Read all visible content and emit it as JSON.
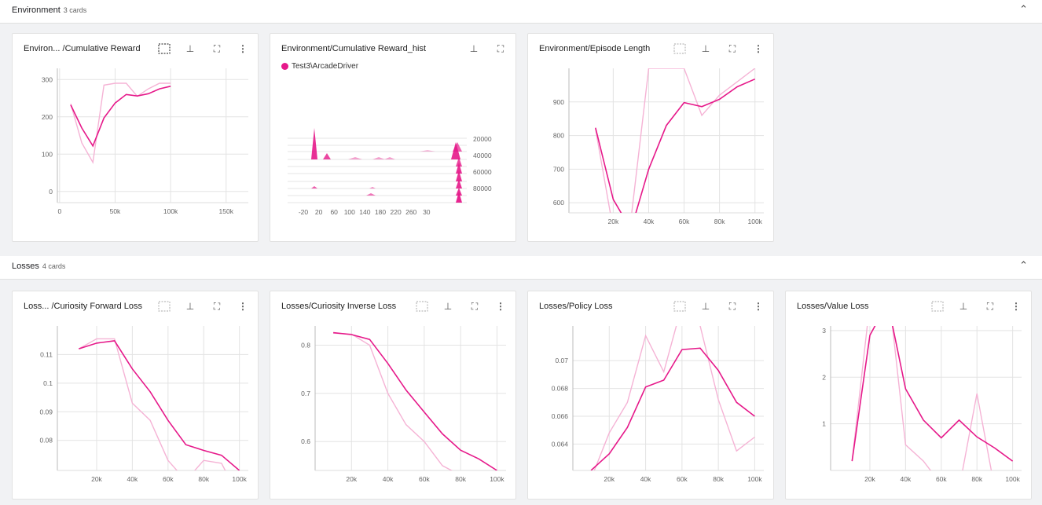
{
  "sections": [
    {
      "title": "Environment",
      "count": "3 cards"
    },
    {
      "title": "Losses",
      "count": "4 cards"
    }
  ],
  "colors": {
    "accent": "#e6198a",
    "accent_light": "#f5b3d5"
  },
  "cards": {
    "c0": {
      "title": "Environ... /Cumulative Reward"
    },
    "c1": {
      "title": "Environment/Cumulative Reward_hist",
      "legend": "Test3\\ArcadeDriver"
    },
    "c2": {
      "title": "Environment/Episode Length"
    },
    "c3": {
      "title": "Loss... /Curiosity Forward Loss"
    },
    "c4": {
      "title": "Losses/Curiosity Inverse Loss"
    },
    "c5": {
      "title": "Losses/Policy Loss"
    },
    "c6": {
      "title": "Losses/Value Loss"
    }
  },
  "chart_data": [
    {
      "id": "c0",
      "type": "line",
      "xlim": [
        -2000,
        170000
      ],
      "ylim": [
        -30,
        330
      ],
      "xticks": [
        0,
        50000,
        100000,
        150000
      ],
      "xtick_labels": [
        "0",
        "50k",
        "100k",
        "150k"
      ],
      "yticks": [
        0,
        100,
        200,
        300
      ],
      "ytick_labels": [
        "0",
        "100",
        "200",
        "300"
      ],
      "series": [
        {
          "kind": "raw",
          "x": [
            10000,
            20000,
            30000,
            40000,
            50000,
            60000,
            70000,
            80000,
            90000,
            100000
          ],
          "y": [
            235,
            130,
            78,
            285,
            290,
            290,
            255,
            275,
            290,
            290
          ]
        },
        {
          "kind": "smoothed",
          "x": [
            10000,
            20000,
            30000,
            40000,
            50000,
            60000,
            70000,
            80000,
            90000,
            100000
          ],
          "y": [
            232,
            170,
            122,
            197,
            237,
            260,
            256,
            262,
            275,
            282
          ]
        }
      ]
    },
    {
      "id": "c1",
      "type": "histogram",
      "xtick_labels": [
        "-20",
        "20",
        "60",
        "100",
        "140",
        "180",
        "220",
        "260",
        "30"
      ],
      "ytick_labels": [
        "20000",
        "40000",
        "60000",
        "80000"
      ]
    },
    {
      "id": "c2",
      "type": "line",
      "xlim": [
        -5000,
        105000
      ],
      "ylim": [
        570,
        1000
      ],
      "xticks": [
        20000,
        40000,
        60000,
        80000,
        100000
      ],
      "xtick_labels": [
        "20k",
        "40k",
        "60k",
        "80k",
        "100k"
      ],
      "yticks": [
        600,
        700,
        800,
        900
      ],
      "ytick_labels": [
        "600",
        "700",
        "800",
        "900"
      ],
      "series": [
        {
          "kind": "raw",
          "x": [
            10000,
            20000,
            30000,
            40000,
            50000,
            60000,
            70000,
            80000,
            90000,
            100000
          ],
          "y": [
            820,
            520,
            550,
            1000,
            1000,
            1000,
            860,
            920,
            960,
            1000
          ]
        },
        {
          "kind": "smoothed",
          "x": [
            10000,
            20000,
            30000,
            40000,
            50000,
            60000,
            70000,
            80000,
            90000,
            100000
          ],
          "y": [
            823,
            610,
            520,
            700,
            830,
            898,
            886,
            908,
            945,
            968
          ]
        }
      ]
    },
    {
      "id": "c3",
      "type": "line",
      "xlim": [
        -2000,
        105000
      ],
      "ylim": [
        0.0695,
        0.12
      ],
      "xticks": [
        20000,
        40000,
        60000,
        80000,
        100000
      ],
      "xtick_labels": [
        "20k",
        "40k",
        "60k",
        "80k",
        "100k"
      ],
      "yticks": [
        0.08,
        0.09,
        0.1,
        0.11
      ],
      "ytick_labels": [
        "0.08",
        "0.09",
        "0.1",
        "0.11"
      ],
      "series": [
        {
          "kind": "raw",
          "x": [
            10000,
            20000,
            30000,
            40000,
            50000,
            60000,
            70000,
            80000,
            90000,
            100000
          ],
          "y": [
            0.112,
            0.1155,
            0.1155,
            0.093,
            0.087,
            0.073,
            0.066,
            0.073,
            0.072,
            0.06
          ]
        },
        {
          "kind": "smoothed",
          "x": [
            10000,
            20000,
            30000,
            40000,
            50000,
            60000,
            70000,
            80000,
            90000,
            100000
          ],
          "y": [
            0.112,
            0.114,
            0.1148,
            0.105,
            0.097,
            0.087,
            0.0785,
            0.0765,
            0.0748,
            0.0695
          ]
        }
      ]
    },
    {
      "id": "c4",
      "type": "line",
      "xlim": [
        0,
        105000
      ],
      "ylim": [
        0.54,
        0.84
      ],
      "xticks": [
        20000,
        40000,
        60000,
        80000,
        100000
      ],
      "xtick_labels": [
        "20k",
        "40k",
        "60k",
        "80k",
        "100k"
      ],
      "yticks": [
        0.6,
        0.7,
        0.8
      ],
      "ytick_labels": [
        "0.6",
        "0.7",
        "0.8"
      ],
      "series": [
        {
          "kind": "raw",
          "x": [
            10000,
            20000,
            30000,
            40000,
            50000,
            60000,
            70000,
            80000,
            90000
          ],
          "y": [
            0.825,
            0.823,
            0.8,
            0.7,
            0.635,
            0.6,
            0.55,
            0.53,
            0.53
          ]
        },
        {
          "kind": "smoothed",
          "x": [
            10000,
            20000,
            30000,
            40000,
            50000,
            60000,
            70000,
            80000,
            90000,
            100000
          ],
          "y": [
            0.826,
            0.822,
            0.812,
            0.762,
            0.707,
            0.661,
            0.616,
            0.582,
            0.564,
            0.54
          ]
        }
      ]
    },
    {
      "id": "c5",
      "type": "line",
      "xlim": [
        0,
        105000
      ],
      "ylim": [
        0.0621,
        0.0725
      ],
      "xticks": [
        20000,
        40000,
        60000,
        80000,
        100000
      ],
      "xtick_labels": [
        "20k",
        "40k",
        "60k",
        "80k",
        "100k"
      ],
      "yticks": [
        0.064,
        0.066,
        0.068,
        0.07
      ],
      "ytick_labels": [
        "0.064",
        "0.066",
        "0.068",
        "0.07"
      ],
      "series": [
        {
          "kind": "raw",
          "x": [
            10000,
            20000,
            30000,
            40000,
            50000,
            60000,
            70000,
            80000,
            90000,
            100000
          ],
          "y": [
            0.0615,
            0.0648,
            0.067,
            0.0718,
            0.0692,
            0.074,
            0.0725,
            0.0672,
            0.0635,
            0.0645
          ]
        },
        {
          "kind": "smoothed",
          "x": [
            10000,
            20000,
            30000,
            40000,
            50000,
            60000,
            70000,
            80000,
            90000,
            100000
          ],
          "y": [
            0.0621,
            0.0633,
            0.0652,
            0.0681,
            0.0686,
            0.0708,
            0.0709,
            0.0693,
            0.067,
            0.066
          ]
        }
      ]
    },
    {
      "id": "c6",
      "type": "line",
      "xlim": [
        -2000,
        105000
      ],
      "ylim": [
        0,
        3.1
      ],
      "xticks": [
        20000,
        40000,
        60000,
        80000,
        100000
      ],
      "xtick_labels": [
        "20k",
        "40k",
        "60k",
        "80k",
        "100k"
      ],
      "yticks": [
        1,
        2,
        3
      ],
      "ytick_labels": [
        "1",
        "2",
        "3"
      ],
      "series": [
        {
          "kind": "raw",
          "x": [
            10000,
            20000,
            30000,
            40000,
            50000,
            60000,
            70000,
            80000,
            90000
          ],
          "y": [
            0.2,
            3.6,
            4.0,
            0.55,
            0.2,
            -0.3,
            -0.4,
            1.65,
            -0.4
          ]
        },
        {
          "kind": "smoothed",
          "x": [
            10000,
            20000,
            30000,
            40000,
            50000,
            60000,
            70000,
            80000,
            90000,
            100000
          ],
          "y": [
            0.2,
            2.9,
            3.6,
            1.75,
            1.08,
            0.7,
            1.08,
            0.72,
            0.48,
            0.2
          ]
        }
      ]
    }
  ]
}
